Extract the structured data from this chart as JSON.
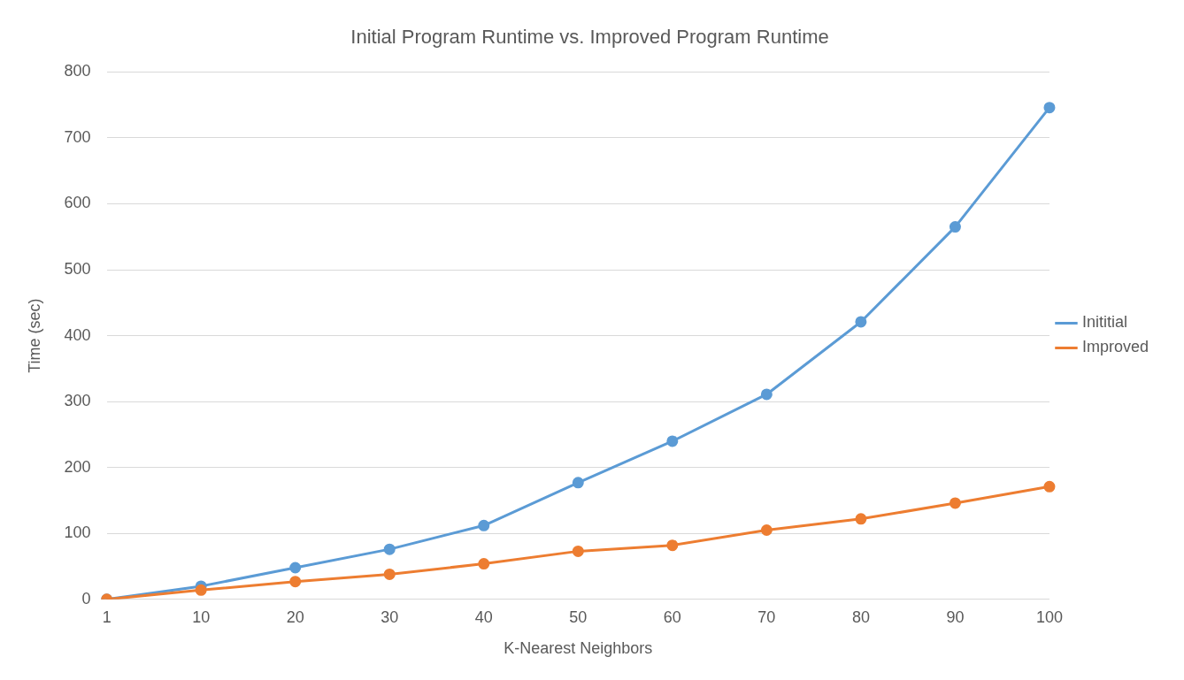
{
  "chart_data": {
    "type": "line",
    "title": "Initial Program Runtime vs. Improved Program Runtime",
    "xlabel": "K-Nearest Neighbors",
    "ylabel": "Time (sec)",
    "categories": [
      "1",
      "10",
      "20",
      "30",
      "40",
      "50",
      "60",
      "70",
      "80",
      "90",
      "100"
    ],
    "series": [
      {
        "name": "Inititial",
        "color": "#5b9bd5",
        "values": [
          0,
          20,
          48,
          76,
          112,
          177,
          240,
          311,
          421,
          565,
          746
        ]
      },
      {
        "name": "Improved",
        "color": "#ed7d31",
        "values": [
          0,
          14,
          27,
          38,
          54,
          73,
          82,
          105,
          122,
          146,
          171
        ]
      }
    ],
    "ylim": [
      0,
      800
    ],
    "yticks": [
      0,
      100,
      200,
      300,
      400,
      500,
      600,
      700,
      800
    ],
    "grid": "y",
    "legend": "right",
    "marker": "circle",
    "line_style": "solid"
  }
}
